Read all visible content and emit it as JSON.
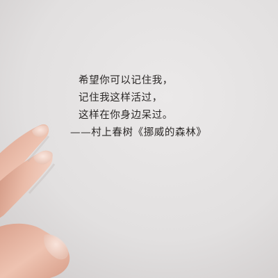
{
  "quote": {
    "lines": [
      "希望你可以记住我，",
      "记住我这样活过，",
      "这样在你身边呆过。",
      "——村上春树《挪威的森林》"
    ]
  },
  "colors": {
    "paper": "#e3e1e1",
    "ink": "#2a2726",
    "skin": "#e6b7a4"
  }
}
